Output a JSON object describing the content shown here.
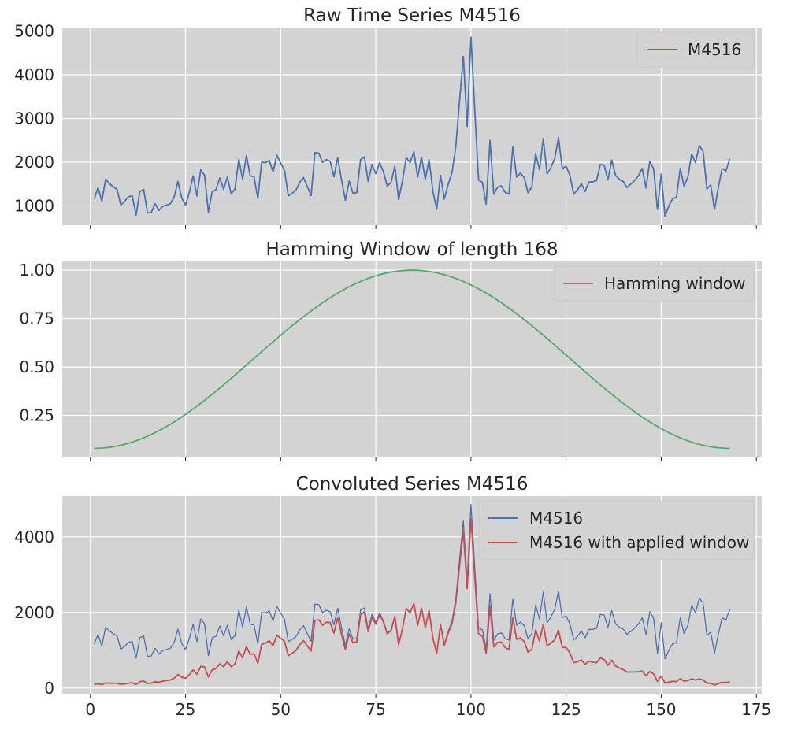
{
  "chart_data": [
    {
      "type": "line",
      "title": "Raw Time Series M4516",
      "xlim": [
        -7.4,
        176.4
      ],
      "ylim": [
        560,
        5080
      ],
      "xticks": [
        0,
        25,
        50,
        75,
        100,
        125,
        150,
        175
      ],
      "yticks": [
        1000,
        2000,
        3000,
        4000,
        5000
      ],
      "ytick_labels": [
        "1000",
        "2000",
        "3000",
        "4000",
        "5000"
      ],
      "show_xtick_labels": false,
      "grid": true,
      "legend_position": "top-right",
      "series": [
        {
          "name": "M4516",
          "color": "#4c72b0",
          "x_start": 1,
          "values": [
            1160,
            1420,
            1110,
            1610,
            1510,
            1440,
            1380,
            1020,
            1110,
            1210,
            1230,
            790,
            1330,
            1380,
            840,
            850,
            1050,
            900,
            990,
            1020,
            1050,
            1200,
            1560,
            1180,
            1020,
            1310,
            1690,
            1230,
            1830,
            1700,
            860,
            1330,
            1370,
            1640,
            1380,
            1660,
            1280,
            1390,
            2070,
            1610,
            2150,
            1690,
            1670,
            1170,
            2000,
            1990,
            2040,
            1780,
            2160,
            1980,
            1820,
            1230,
            1290,
            1360,
            1540,
            1650,
            1440,
            1240,
            2220,
            2210,
            2000,
            2060,
            2020,
            1670,
            2110,
            1590,
            1130,
            1570,
            1290,
            1310,
            2060,
            2120,
            1560,
            1950,
            1740,
            1990,
            1780,
            1460,
            1530,
            1910,
            1150,
            1570,
            2110,
            1990,
            2240,
            1660,
            2120,
            1610,
            2060,
            1330,
            930,
            1700,
            1160,
            1490,
            1760,
            2340,
            3400,
            4420,
            2820,
            4860,
            3200,
            1590,
            1540,
            1040,
            2500,
            1270,
            1430,
            1460,
            1310,
            1270,
            2350,
            1660,
            1750,
            1650,
            1300,
            1440,
            2200,
            1830,
            2540,
            1730,
            1880,
            2080,
            2560,
            1860,
            1910,
            1700,
            1270,
            1370,
            1510,
            1330,
            1550,
            1550,
            1580,
            1950,
            1930,
            1600,
            2050,
            1700,
            1610,
            1560,
            1420,
            1500,
            1580,
            1690,
            1860,
            1410,
            2020,
            1850,
            920,
            1730,
            770,
            1000,
            1170,
            1200,
            1860,
            1450,
            1660,
            2190,
            1990,
            2380,
            2250,
            1390,
            1480,
            920,
            1420,
            1860,
            1800,
            2080
          ]
        }
      ]
    },
    {
      "type": "line",
      "title": "Hamming Window of length 168",
      "xlim": [
        -7.4,
        176.4
      ],
      "ylim": [
        0.0326,
        1.0454
      ],
      "xticks": [
        0,
        25,
        50,
        75,
        100,
        125,
        150,
        175
      ],
      "yticks": [
        0.25,
        0.5,
        0.75,
        1.0
      ],
      "ytick_labels": [
        "0.25",
        "0.50",
        "0.75",
        "1.00"
      ],
      "show_xtick_labels": false,
      "grid": true,
      "legend_position": "top-right",
      "series": [
        {
          "name": "Hamming window",
          "color": "#55a868",
          "x_start": 1,
          "function": "hamming",
          "length": 168
        }
      ]
    },
    {
      "type": "line",
      "title": "Convoluted Series M4516",
      "xlim": [
        -7.4,
        176.4
      ],
      "ylim": [
        -150,
        5080
      ],
      "xticks": [
        0,
        25,
        50,
        75,
        100,
        125,
        150,
        175
      ],
      "xtick_labels": [
        "0",
        "25",
        "50",
        "75",
        "100",
        "125",
        "150",
        "175"
      ],
      "yticks": [
        0,
        2000,
        4000
      ],
      "ytick_labels": [
        "0",
        "2000",
        "4000"
      ],
      "show_xtick_labels": true,
      "grid": true,
      "legend_position": "top-right",
      "series": [
        {
          "name": "M4516",
          "color": "#4c72b0",
          "source": "raw"
        },
        {
          "name": "M4516 with applied window",
          "color": "#c44e52",
          "source": "raw_times_hamming"
        }
      ]
    }
  ]
}
